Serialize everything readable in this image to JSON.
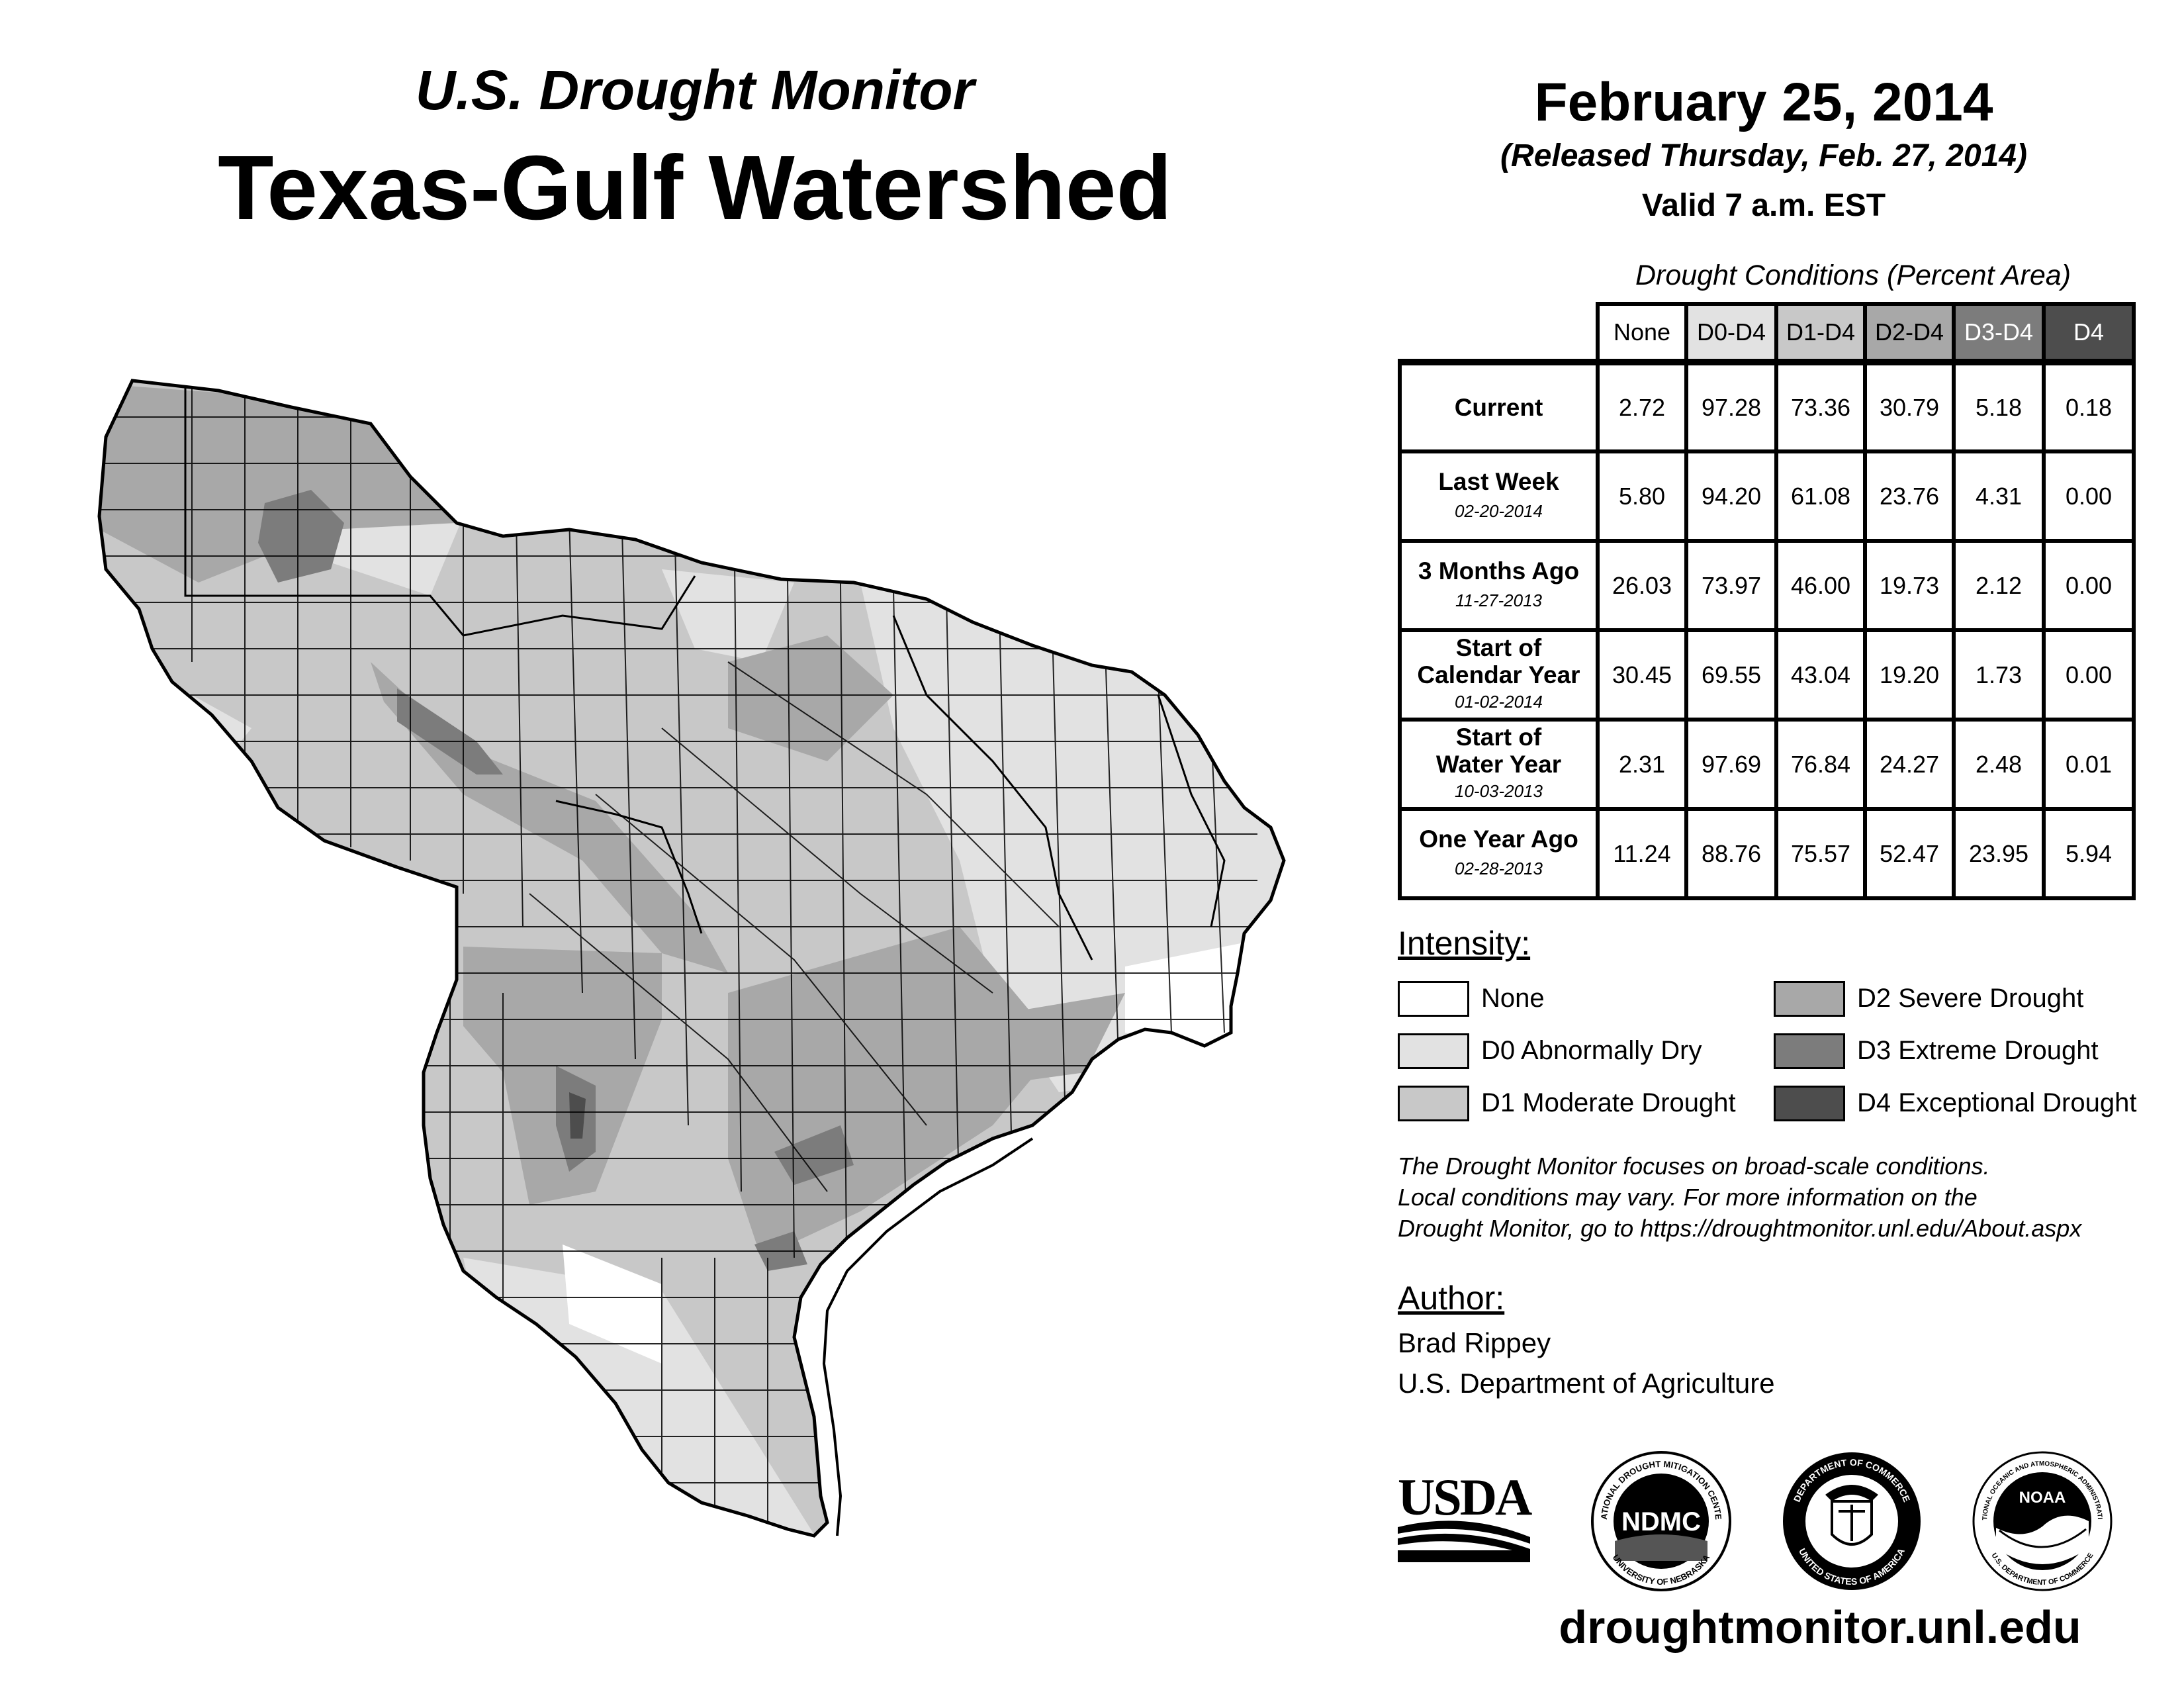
{
  "header": {
    "subtitle": "U.S. Drought Monitor",
    "title": "Texas-Gulf Watershed"
  },
  "release": {
    "date": "February 25, 2014",
    "released": "(Released Thursday, Feb. 27, 2014)",
    "valid": "Valid 7 a.m. EST"
  },
  "table": {
    "title": "Drought Conditions (Percent Area)",
    "columns": [
      "None",
      "D0-D4",
      "D1-D4",
      "D2-D4",
      "D3-D4",
      "D4"
    ],
    "rows": [
      {
        "label": "Current",
        "date": "",
        "values": [
          "2.72",
          "97.28",
          "73.36",
          "30.79",
          "5.18",
          "0.18"
        ]
      },
      {
        "label": "Last Week",
        "date": "02-20-2014",
        "values": [
          "5.80",
          "94.20",
          "61.08",
          "23.76",
          "4.31",
          "0.00"
        ]
      },
      {
        "label": "3 Months Ago",
        "date": "11-27-2013",
        "values": [
          "26.03",
          "73.97",
          "46.00",
          "19.73",
          "2.12",
          "0.00"
        ]
      },
      {
        "label_line1": "Start of",
        "label_line2": "Calendar Year",
        "date": "01-02-2014",
        "values": [
          "30.45",
          "69.55",
          "43.04",
          "19.20",
          "1.73",
          "0.00"
        ]
      },
      {
        "label_line1": "Start of",
        "label_line2": "Water Year",
        "date": "10-03-2013",
        "values": [
          "2.31",
          "97.69",
          "76.84",
          "24.27",
          "2.48",
          "0.01"
        ]
      },
      {
        "label": "One Year Ago",
        "date": "02-28-2013",
        "values": [
          "11.24",
          "88.76",
          "75.57",
          "52.47",
          "23.95",
          "5.94"
        ]
      }
    ]
  },
  "legend": {
    "title": "Intensity:",
    "items": [
      {
        "label": "None",
        "color": "#ffffff"
      },
      {
        "label": "D0 Abnormally Dry",
        "color": "#e2e2e2"
      },
      {
        "label": "D1 Moderate Drought",
        "color": "#c8c8c8"
      },
      {
        "label": "D2 Severe Drought",
        "color": "#a8a8a8"
      },
      {
        "label": "D3 Extreme Drought",
        "color": "#7c7c7c"
      },
      {
        "label": "D4 Exceptional Drought",
        "color": "#4d4d4d"
      }
    ]
  },
  "note": {
    "line1": "The Drought Monitor focuses on broad-scale conditions.",
    "line2": "Local conditions may vary. For more information on the",
    "line3": "Drought Monitor, go to https://droughtmonitor.unl.edu/About.aspx"
  },
  "author": {
    "heading": "Author:",
    "name": "Brad Rippey",
    "org": "U.S. Department of Agriculture"
  },
  "logos": {
    "usda": "USDA",
    "ndmc": "NDMC",
    "noaa": "NOAA",
    "ndmc_ring_top": "NATIONAL DROUGHT MITIGATION CENTER",
    "ndmc_ring_bottom": "UNIVERSITY OF NEBRASKA",
    "doc_ring_top": "DEPARTMENT OF COMMERCE",
    "doc_ring_bottom": "UNITED STATES OF AMERICA",
    "noaa_ring_top": "NATIONAL OCEANIC AND ATMOSPHERIC ADMINISTRATION",
    "noaa_ring_bottom": "U.S. DEPARTMENT OF COMMERCE"
  },
  "footer": {
    "url": "droughtmonitor.unl.edu"
  }
}
